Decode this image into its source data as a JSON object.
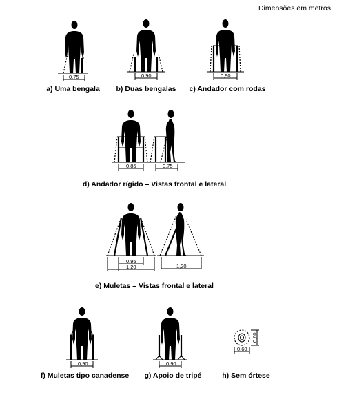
{
  "units_note": "Dimensões em metros",
  "figures": [
    {
      "caption": "a) Uma bengala",
      "dims": [
        "0,75"
      ]
    },
    {
      "caption": "b) Duas bengalas",
      "dims": [
        "0,90"
      ]
    },
    {
      "caption": "c) Andador com rodas",
      "dims": [
        "0,90"
      ]
    },
    {
      "caption": "d) Andador rígido – Vistas frontal e lateral",
      "dims": [
        "0,85",
        "0,75"
      ]
    },
    {
      "caption": "e) Muletas – Vistas frontal e lateral",
      "dims": [
        "0,95",
        "1,20",
        "1,20"
      ]
    },
    {
      "caption": "f) Muletas tipo canadense",
      "dims": [
        "0,90"
      ]
    },
    {
      "caption": "g) Apoio de tripé",
      "dims": [
        "0,90"
      ]
    },
    {
      "caption": "h) Sem órtese",
      "dims": [
        "0,60",
        "0,60"
      ]
    }
  ]
}
